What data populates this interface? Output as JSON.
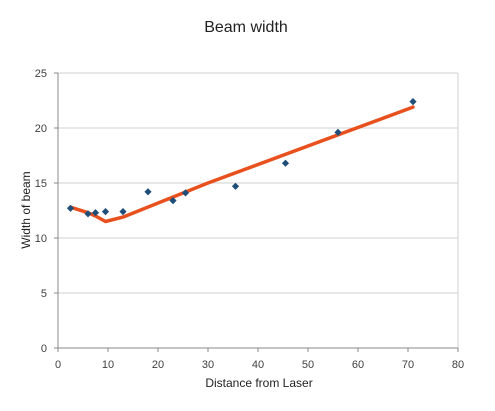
{
  "chart_data": {
    "type": "scatter",
    "title": "Beam width",
    "xlabel": "Distance from Laser",
    "ylabel": "Width of beam",
    "xlim": [
      0,
      80
    ],
    "ylim": [
      0,
      25
    ],
    "xticks": [
      0,
      10,
      20,
      30,
      40,
      50,
      60,
      70,
      80
    ],
    "yticks": [
      0,
      5,
      10,
      15,
      20,
      25
    ],
    "grid": {
      "horizontal": true,
      "vertical": false
    },
    "legend": "none",
    "series": [
      {
        "kind": "scatter",
        "marker": "diamond",
        "color": "#1f4e79",
        "points": [
          {
            "x": 2.5,
            "y": 12.7
          },
          {
            "x": 6,
            "y": 12.2
          },
          {
            "x": 7.5,
            "y": 12.3
          },
          {
            "x": 9.5,
            "y": 12.4
          },
          {
            "x": 13,
            "y": 12.4
          },
          {
            "x": 18,
            "y": 14.2
          },
          {
            "x": 23,
            "y": 13.4
          },
          {
            "x": 25.5,
            "y": 14.1
          },
          {
            "x": 35.5,
            "y": 14.7
          },
          {
            "x": 45.5,
            "y": 16.8
          },
          {
            "x": 56,
            "y": 19.6
          },
          {
            "x": 71,
            "y": 22.4
          }
        ]
      },
      {
        "kind": "line",
        "color": "#e8501e",
        "points": [
          {
            "x": 2.5,
            "y": 12.8
          },
          {
            "x": 6,
            "y": 12.3
          },
          {
            "x": 7.5,
            "y": 12.0
          },
          {
            "x": 9.5,
            "y": 11.5
          },
          {
            "x": 13,
            "y": 11.9
          },
          {
            "x": 30,
            "y": 15.0
          },
          {
            "x": 71,
            "y": 21.9
          }
        ]
      }
    ]
  }
}
